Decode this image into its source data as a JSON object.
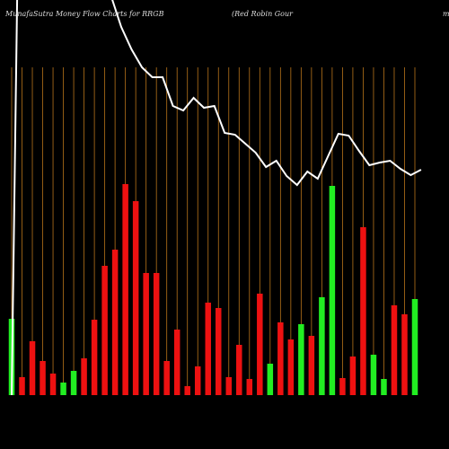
{
  "chart_data": {
    "type": "bar",
    "title": "MunafaSutra  Money Flow  Charts for RRGB",
    "subtitle": "(Red Robin  Gour",
    "title_tail": "m",
    "values": [
      85,
      20,
      60,
      38,
      24,
      14,
      27,
      41,
      84,
      144,
      162,
      235,
      216,
      136,
      136,
      38,
      73,
      10,
      32,
      103,
      97,
      20,
      56,
      18,
      113,
      35,
      81,
      62,
      79,
      66,
      109,
      233,
      19,
      43,
      187,
      45,
      18,
      100,
      90,
      107
    ],
    "colors": [
      "#22ee22",
      "#ee1111",
      "#ee1111",
      "#ee1111",
      "#ee1111",
      "#22ee22",
      "#22ee22",
      "#ee1111",
      "#ee1111",
      "#ee1111",
      "#ee1111",
      "#ee1111",
      "#ee1111",
      "#ee1111",
      "#ee1111",
      "#ee1111",
      "#ee1111",
      "#ee1111",
      "#ee1111",
      "#ee1111",
      "#ee1111",
      "#ee1111",
      "#ee1111",
      "#ee1111",
      "#ee1111",
      "#22ee22",
      "#ee1111",
      "#ee1111",
      "#22ee22",
      "#ee1111",
      "#22ee22",
      "#22ee22",
      "#ee1111",
      "#ee1111",
      "#ee1111",
      "#22ee22",
      "#22ee22",
      "#ee1111",
      "#ee1111",
      "#22ee22"
    ],
    "price": [
      60,
      560,
      560,
      560,
      560,
      560,
      560,
      560,
      560,
      560,
      505,
      470,
      445,
      425,
      414,
      414,
      382,
      377,
      391,
      380,
      382,
      352,
      350,
      340,
      330,
      314,
      321,
      304,
      294,
      309,
      301,
      326,
      351,
      349,
      332,
      316,
      319,
      321,
      312,
      305,
      311
    ],
    "price_color": "#ffffff",
    "grid_color": "#b8741a"
  }
}
